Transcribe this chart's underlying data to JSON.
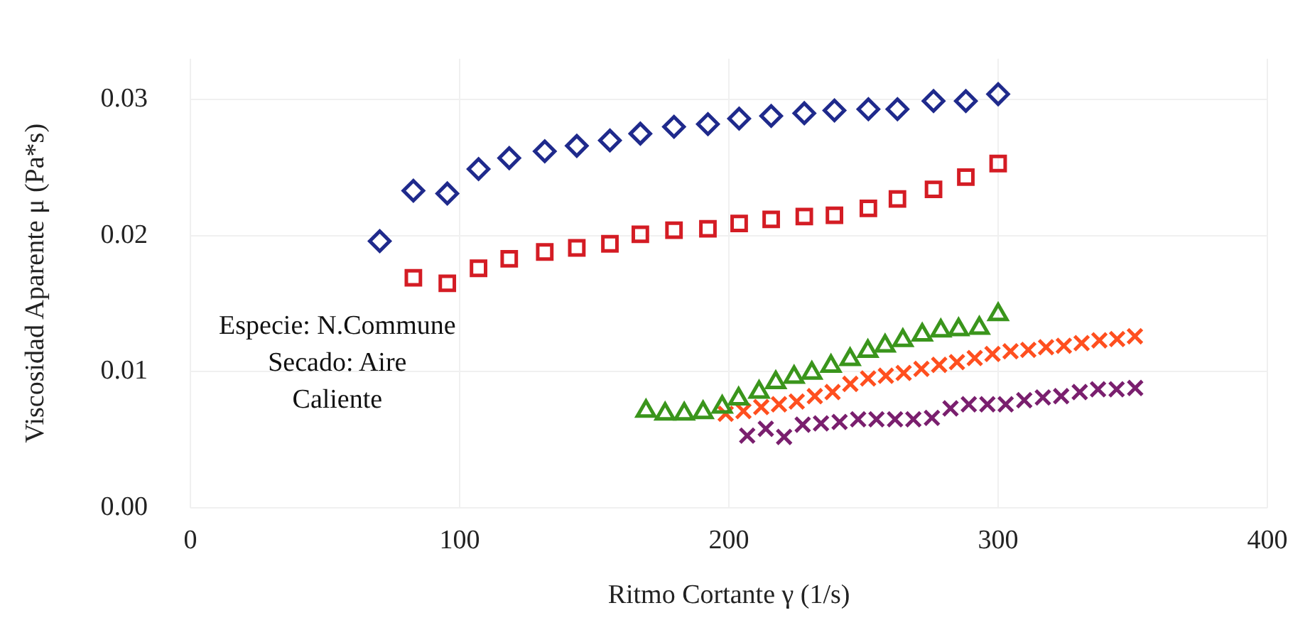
{
  "chart_data": {
    "type": "scatter",
    "xlabel": "Ritmo Cortante γ (1/s)",
    "ylabel": "Viscosidad Aparente μ (Pa*s)",
    "annotations": [
      "Especie: N.Commune",
      "Secado: Aire",
      "Caliente"
    ],
    "xlim": [
      0,
      400
    ],
    "xticks": [
      0,
      100,
      200,
      300,
      400
    ],
    "ylim": [
      0,
      0.033
    ],
    "yticks": [
      {
        "value": 0,
        "label": "0.00"
      },
      {
        "value": 0.01,
        "label": "0.01"
      },
      {
        "value": 0.02,
        "label": "0.02"
      },
      {
        "value": 0.03,
        "label": "0.03"
      }
    ],
    "grid": true,
    "legend": false,
    "series": [
      {
        "color": "#1f2a8c",
        "marker": "diamond",
        "x": [
          70.3,
          82.8,
          95.4,
          107,
          118.4,
          131.6,
          143.5,
          155.8,
          167.1,
          179.6,
          192.2,
          203.8,
          215.7,
          228,
          239.2,
          251.8,
          262.6,
          276,
          288,
          300
        ],
        "values": [
          0.0196,
          0.0233,
          0.0231,
          0.0249,
          0.0257,
          0.0262,
          0.0266,
          0.027,
          0.0275,
          0.028,
          0.0282,
          0.0286,
          0.0288,
          0.029,
          0.0292,
          0.0293,
          0.0293,
          0.0299,
          0.0299,
          0.0304
        ]
      },
      {
        "color": "#d41c24",
        "marker": "square",
        "x": [
          82.8,
          95.4,
          107,
          118.4,
          131.6,
          143.5,
          155.8,
          167.1,
          179.6,
          192.2,
          203.8,
          215.7,
          228,
          239.2,
          251.8,
          262.6,
          276,
          288,
          300
        ],
        "values": [
          0.0169,
          0.0165,
          0.0176,
          0.0183,
          0.0188,
          0.0191,
          0.0194,
          0.0201,
          0.0204,
          0.0205,
          0.0209,
          0.0212,
          0.0214,
          0.0215,
          0.022,
          0.0227,
          0.0234,
          0.0243,
          0.0253
        ]
      },
      {
        "color": "#3a951c",
        "marker": "triangle",
        "x": [
          169.2,
          176.3,
          183.4,
          190.4,
          197.5,
          203.6,
          211.2,
          217.4,
          224.2,
          230.8,
          237.9,
          245,
          251.6,
          258,
          264.6,
          271.8,
          278.7,
          285.3,
          293,
          300
        ],
        "values": [
          0.0071,
          0.0069,
          0.0069,
          0.007,
          0.0074,
          0.008,
          0.0085,
          0.0092,
          0.0096,
          0.0099,
          0.0104,
          0.0109,
          0.0115,
          0.0119,
          0.0123,
          0.0127,
          0.013,
          0.0131,
          0.0132,
          0.0142
        ]
      },
      {
        "color": "#ff4f1f",
        "marker": "cross",
        "x": [
          198.8,
          205.4,
          212,
          218.6,
          225.2,
          231.9,
          238.5,
          245.1,
          251.7,
          258.3,
          264.9,
          271.5,
          278.1,
          284.7,
          291.3,
          297.9,
          304.6,
          311.2,
          317.8,
          324.4,
          331,
          337.6,
          344.2,
          350.8
        ],
        "values": [
          0.0069,
          0.0071,
          0.0074,
          0.0076,
          0.0078,
          0.0082,
          0.0085,
          0.0091,
          0.0095,
          0.0097,
          0.0099,
          0.0102,
          0.0105,
          0.0107,
          0.011,
          0.0113,
          0.0115,
          0.0116,
          0.0118,
          0.0119,
          0.0121,
          0.0123,
          0.0124,
          0.0126
        ]
      },
      {
        "color": "#7a1f6e",
        "marker": "cross",
        "x": [
          206.8,
          213.7,
          220.5,
          227.4,
          234.2,
          241.1,
          248,
          254.8,
          261.7,
          268.5,
          275.4,
          282.3,
          289.1,
          296,
          302.8,
          309.7,
          316.6,
          323.4,
          330.3,
          337.1,
          344,
          350.9
        ],
        "values": [
          0.0053,
          0.0058,
          0.0052,
          0.0061,
          0.0062,
          0.0063,
          0.0065,
          0.0065,
          0.0065,
          0.0065,
          0.0066,
          0.0073,
          0.0076,
          0.0076,
          0.0076,
          0.0079,
          0.0081,
          0.0082,
          0.0085,
          0.0087,
          0.0087,
          0.0088
        ]
      }
    ]
  }
}
